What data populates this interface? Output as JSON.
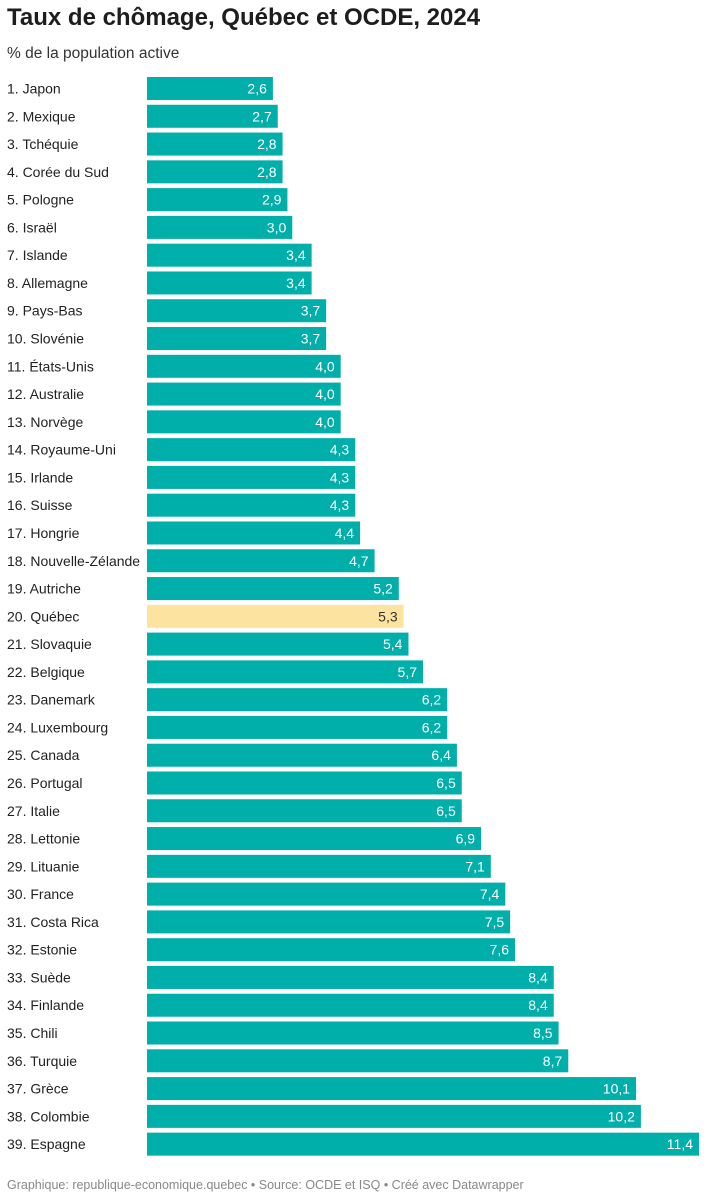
{
  "chart_data": {
    "type": "bar",
    "orientation": "horizontal",
    "title": "Taux de chômage, Québec et OCDE, 2024",
    "subtitle": "% de la population active",
    "colors": {
      "bar": "#00aeaa",
      "highlight": "#fde3a0"
    },
    "highlight": "20. Québec",
    "categories": [
      "1. Japon",
      "2. Mexique",
      "3. Tchéquie",
      "4. Corée du Sud",
      "5. Pologne",
      "6. Israël",
      "7. Islande",
      "8. Allemagne",
      "9. Pays-Bas",
      "10. Slovénie",
      "11. États-Unis",
      "12. Australie",
      "13. Norvège",
      "14. Royaume-Uni",
      "15. Irlande",
      "16. Suisse",
      "17. Hongrie",
      "18. Nouvelle-Zélande",
      "19. Autriche",
      "20. Québec",
      "21. Slovaquie",
      "22. Belgique",
      "23. Danemark",
      "24. Luxembourg",
      "25. Canada",
      "26. Portugal",
      "27. Italie",
      "28. Lettonie",
      "29. Lituanie",
      "30. France",
      "31. Costa Rica",
      "32. Estonie",
      "33. Suède",
      "34. Finlande",
      "35. Chili",
      "36. Turquie",
      "37. Grèce",
      "38. Colombie",
      "39. Espagne"
    ],
    "values": [
      2.6,
      2.7,
      2.8,
      2.8,
      2.9,
      3.0,
      3.4,
      3.4,
      3.7,
      3.7,
      4.0,
      4.0,
      4.0,
      4.3,
      4.3,
      4.3,
      4.4,
      4.7,
      5.2,
      5.3,
      5.4,
      5.7,
      6.2,
      6.2,
      6.4,
      6.5,
      6.5,
      6.9,
      7.1,
      7.4,
      7.5,
      7.6,
      8.4,
      8.4,
      8.5,
      8.7,
      10.1,
      10.2,
      11.4
    ],
    "value_labels": [
      "2,6",
      "2,7",
      "2,8",
      "2,8",
      "2,9",
      "3,0",
      "3,4",
      "3,4",
      "3,7",
      "3,7",
      "4,0",
      "4,0",
      "4,0",
      "4,3",
      "4,3",
      "4,3",
      "4,4",
      "4,7",
      "5,2",
      "5,3",
      "5,4",
      "5,7",
      "6,2",
      "6,2",
      "6,4",
      "6,5",
      "6,5",
      "6,9",
      "7,1",
      "7,4",
      "7,5",
      "7,6",
      "8,4",
      "8,4",
      "8,5",
      "8,7",
      "10,1",
      "10,2",
      "11,4"
    ],
    "xlim": [
      0,
      11.4
    ],
    "grid": false,
    "legend": "none"
  },
  "footer": "Graphique: republique-economique.quebec • Source: OCDE et ISQ • Créé avec Datawrapper"
}
